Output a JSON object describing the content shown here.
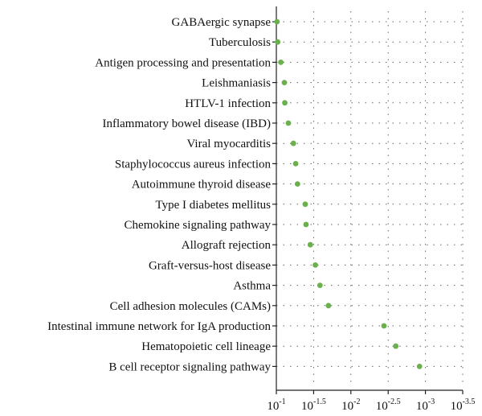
{
  "chart_data": {
    "type": "scatter",
    "title": "",
    "xlabel": "",
    "ylabel": "",
    "x_scale": "log",
    "x_reversed": true,
    "xlim": [
      0.1,
      0.000316
    ],
    "grid": true,
    "legend": "none",
    "point_color": "#6ab04c",
    "x_ticks": [
      {
        "base": "10",
        "exp": "-1",
        "value": 0.1
      },
      {
        "base": "10",
        "exp": "-1.5",
        "value": 0.0316
      },
      {
        "base": "10",
        "exp": "-2",
        "value": 0.01
      },
      {
        "base": "10",
        "exp": "-2.5",
        "value": 0.00316
      },
      {
        "base": "10",
        "exp": "-3",
        "value": 0.001
      },
      {
        "base": "10",
        "exp": "-3.5",
        "value": 0.000316
      }
    ],
    "categories": [
      "GABAergic synapse",
      "Tuberculosis",
      "Antigen processing and presentation",
      "Leishmaniasis",
      "HTLV-1 infection",
      "Inflammatory bowel disease (IBD)",
      "Viral myocarditis",
      "Staphylococcus aureus infection",
      "Autoimmune thyroid disease",
      "Type I diabetes mellitus",
      "Chemokine signaling pathway",
      "Allograft rejection",
      "Graft-versus-host disease",
      "Asthma",
      "Cell adhesion molecules (CAMs)",
      "Intestinal immune network for IgA production",
      "Hematopoietic cell lineage",
      "B cell receptor signaling pathway"
    ],
    "values": [
      0.098,
      0.096,
      0.087,
      0.078,
      0.077,
      0.069,
      0.059,
      0.055,
      0.052,
      0.041,
      0.04,
      0.035,
      0.03,
      0.026,
      0.02,
      0.0036,
      0.0025,
      0.0012
    ]
  }
}
